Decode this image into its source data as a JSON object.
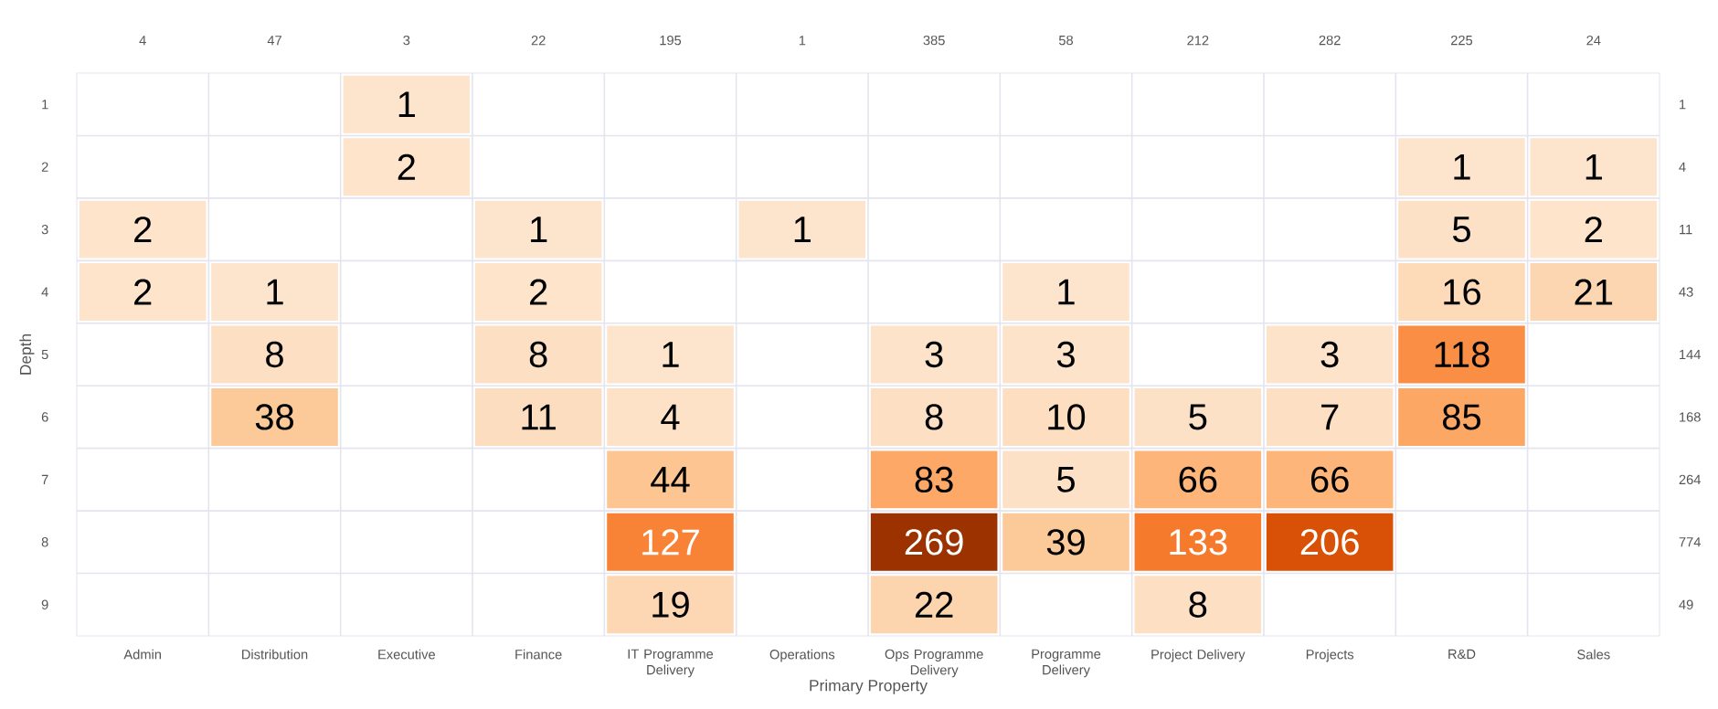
{
  "chart_data": {
    "type": "heatmap",
    "xlabel": "Primary Property",
    "ylabel": "Depth",
    "categories": [
      "Admin",
      "Distribution",
      "Executive",
      "Finance",
      "IT Programme Delivery",
      "Operations",
      "Ops Programme Delivery",
      "Programme Delivery",
      "Project Delivery",
      "Projects",
      "R&D",
      "Sales"
    ],
    "y_categories": [
      "1",
      "2",
      "3",
      "4",
      "5",
      "6",
      "7",
      "8",
      "9"
    ],
    "y2_categories": [
      "1",
      "4",
      "11",
      "43",
      "144",
      "168",
      "264",
      "774",
      "49"
    ],
    "cells": [
      [
        null,
        null,
        1,
        null,
        null,
        null,
        null,
        null,
        null,
        null,
        null,
        null
      ],
      [
        null,
        null,
        2,
        null,
        null,
        null,
        null,
        null,
        null,
        null,
        1,
        1
      ],
      [
        2,
        null,
        null,
        1,
        null,
        1,
        null,
        null,
        null,
        null,
        5,
        2
      ],
      [
        2,
        1,
        null,
        2,
        null,
        null,
        null,
        1,
        null,
        null,
        16,
        21
      ],
      [
        null,
        8,
        null,
        8,
        1,
        null,
        3,
        3,
        null,
        3,
        118,
        null
      ],
      [
        null,
        38,
        null,
        11,
        4,
        null,
        8,
        10,
        5,
        7,
        85,
        null
      ],
      [
        null,
        null,
        null,
        null,
        44,
        null,
        83,
        5,
        66,
        66,
        null,
        null
      ],
      [
        null,
        null,
        null,
        null,
        127,
        null,
        269,
        39,
        133,
        206,
        null,
        null
      ],
      [
        null,
        null,
        null,
        null,
        19,
        null,
        22,
        null,
        8,
        null,
        null,
        null
      ]
    ],
    "annotations": [
      "4",
      "47",
      "3",
      "22",
      "195",
      "1",
      "385",
      "58",
      "212",
      "282",
      "225",
      "24"
    ],
    "data_labels": true,
    "grid": true
  }
}
